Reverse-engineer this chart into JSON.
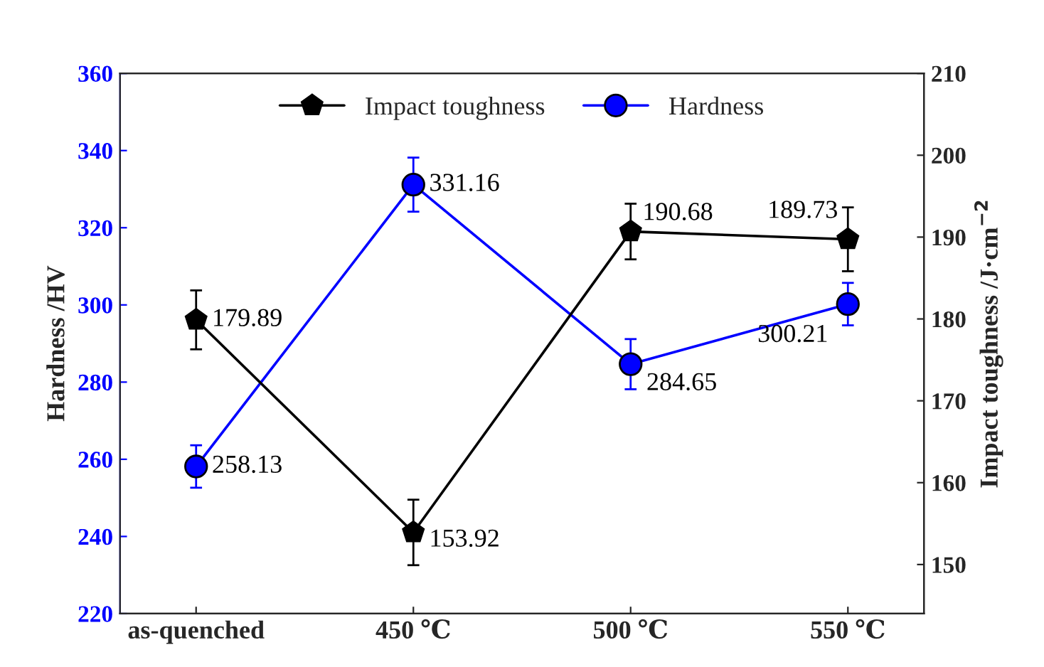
{
  "chart_data": {
    "type": "line",
    "categories": [
      "as-quenched",
      "450 ℃",
      "500 ℃",
      "550 ℃"
    ],
    "ylabel": "Hardness /HV",
    "y2label": "Impact toughness /J·cm$^{−2}$",
    "ylim": [
      220,
      360
    ],
    "yticks": [
      220,
      240,
      260,
      280,
      300,
      320,
      340,
      360
    ],
    "y2lim": [
      144,
      210
    ],
    "y2ticks": [
      150,
      160,
      170,
      180,
      190,
      200,
      210
    ],
    "legend": "top",
    "data_labels": true,
    "grid": false,
    "series": [
      {
        "name": "Impact toughness",
        "color": "#000000",
        "axis": "y2",
        "marker": "star",
        "values": [
          179.89,
          153.92,
          190.68,
          189.73
        ],
        "errors": [
          3.6,
          4,
          3.4,
          3.9
        ]
      },
      {
        "name": "Hardness",
        "color": "#0000ff",
        "axis": "y",
        "marker": "circle",
        "values": [
          258.13,
          331.16,
          284.65,
          300.21
        ],
        "errors": [
          5.5,
          7,
          6.5,
          5.5
        ]
      }
    ]
  }
}
